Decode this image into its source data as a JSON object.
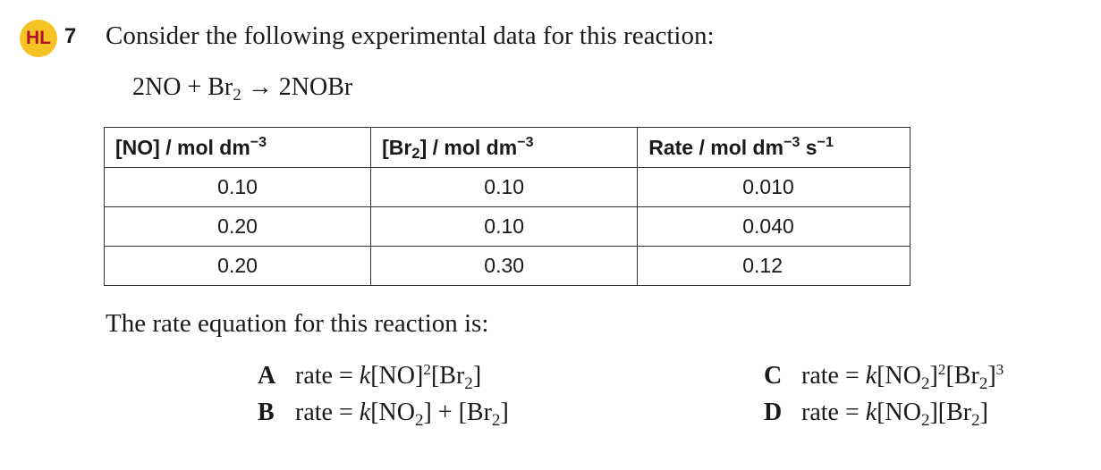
{
  "header": {
    "badge": "HL",
    "number": "7",
    "prompt": "Consider the following experimental data for this reaction:"
  },
  "equation": {
    "left_a": "2NO + Br",
    "left_a_sub": "2",
    "arrow": " → ",
    "right": "2NOBr"
  },
  "table": {
    "headers": {
      "no": {
        "main": "[NO] / mol dm",
        "sup": "−3"
      },
      "br2": {
        "pre": "[Br",
        "sub": "2",
        "post": "] / mol dm",
        "sup": "−3"
      },
      "rate": {
        "main": "Rate / mol dm",
        "sup1": "−3",
        "mid": " s",
        "sup2": "−1"
      }
    },
    "rows": [
      {
        "no": "0.10",
        "br2": "0.10",
        "rate": "0.010"
      },
      {
        "no": "0.20",
        "br2": "0.10",
        "rate": "0.040"
      },
      {
        "no": "0.20",
        "br2": "0.30",
        "rate": "0.12"
      }
    ]
  },
  "stem": "The rate equation for this reaction is:",
  "options": {
    "a": {
      "letter": "A"
    },
    "b": {
      "letter": "B"
    },
    "c": {
      "letter": "C"
    },
    "d": {
      "letter": "D"
    }
  }
}
